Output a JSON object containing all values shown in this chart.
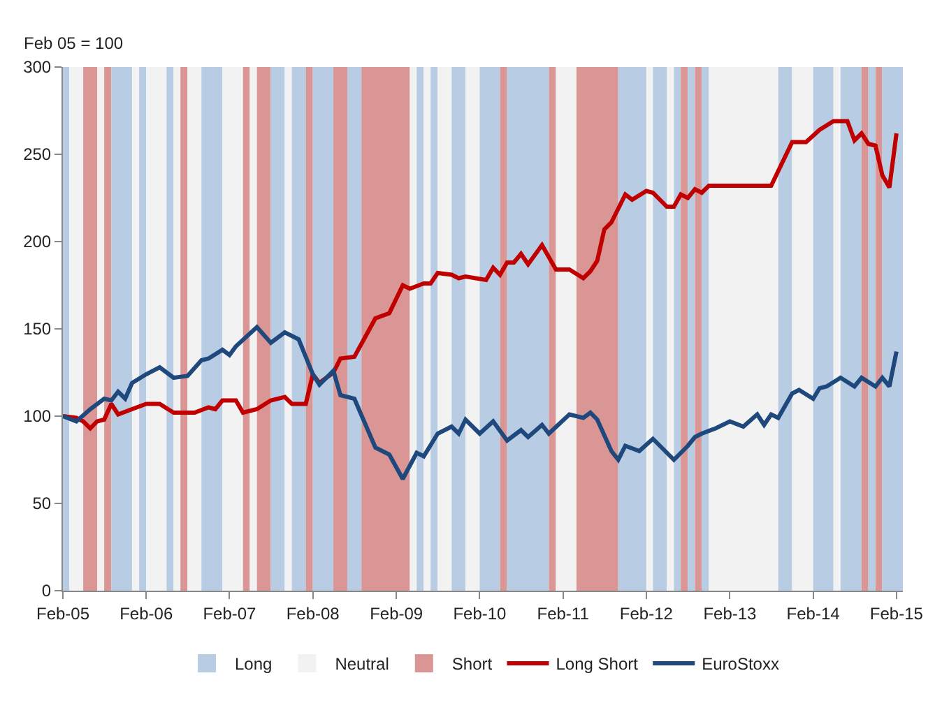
{
  "chart_data": {
    "type": "line",
    "annotations": [
      "Feb 05 = 100"
    ],
    "xlim": [
      "2005-02",
      "2015-03"
    ],
    "xticks": [
      {
        "value": "2005-02",
        "label": "Feb-05"
      },
      {
        "value": "2006-02",
        "label": "Feb-06"
      },
      {
        "value": "2007-02",
        "label": "Feb-07"
      },
      {
        "value": "2008-02",
        "label": "Feb-08"
      },
      {
        "value": "2009-02",
        "label": "Feb-09"
      },
      {
        "value": "2010-02",
        "label": "Feb-10"
      },
      {
        "value": "2011-02",
        "label": "Feb-11"
      },
      {
        "value": "2012-02",
        "label": "Feb-12"
      },
      {
        "value": "2013-02",
        "label": "Feb-13"
      },
      {
        "value": "2014-02",
        "label": "Feb-14"
      },
      {
        "value": "2015-02",
        "label": "Feb-15"
      }
    ],
    "ylim": [
      0,
      300
    ],
    "yticks": [
      0,
      50,
      100,
      150,
      200,
      250,
      300
    ],
    "grid": false,
    "legend": "bottom",
    "marker": "none",
    "line_style": "solid",
    "bands": [
      {
        "axis": "x",
        "from": "2005-02",
        "to": "2005-03",
        "label": "Long",
        "color": "#b8cce4"
      },
      {
        "axis": "x",
        "from": "2005-03",
        "to": "2005-05",
        "label": "Neutral",
        "color": "#f2f2f2"
      },
      {
        "axis": "x",
        "from": "2005-05",
        "to": "2005-07",
        "label": "Short",
        "color": "#d99694"
      },
      {
        "axis": "x",
        "from": "2005-07",
        "to": "2005-08",
        "color": "#f2f2f2"
      },
      {
        "axis": "x",
        "from": "2005-08",
        "to": "2005-09",
        "color": "#d99694"
      },
      {
        "axis": "x",
        "from": "2005-09",
        "to": "2005-12",
        "color": "#b8cce4"
      },
      {
        "axis": "x",
        "from": "2005-12",
        "to": "2006-01",
        "color": "#f2f2f2"
      },
      {
        "axis": "x",
        "from": "2006-01",
        "to": "2006-02",
        "color": "#b8cce4"
      },
      {
        "axis": "x",
        "from": "2006-02",
        "to": "2006-05",
        "color": "#f2f2f2"
      },
      {
        "axis": "x",
        "from": "2006-05",
        "to": "2006-06",
        "color": "#b8cce4"
      },
      {
        "axis": "x",
        "from": "2006-06",
        "to": "2006-07",
        "color": "#f2f2f2"
      },
      {
        "axis": "x",
        "from": "2006-07",
        "to": "2006-08",
        "color": "#d99694"
      },
      {
        "axis": "x",
        "from": "2006-08",
        "to": "2006-10",
        "color": "#f2f2f2"
      },
      {
        "axis": "x",
        "from": "2006-10",
        "to": "2007-01",
        "color": "#b8cce4"
      },
      {
        "axis": "x",
        "from": "2007-01",
        "to": "2007-04",
        "color": "#f2f2f2"
      },
      {
        "axis": "x",
        "from": "2007-04",
        "to": "2007-05",
        "color": "#d99694"
      },
      {
        "axis": "x",
        "from": "2007-05",
        "to": "2007-06",
        "color": "#f2f2f2"
      },
      {
        "axis": "x",
        "from": "2007-06",
        "to": "2007-08",
        "color": "#d99694"
      },
      {
        "axis": "x",
        "from": "2007-08",
        "to": "2007-10",
        "color": "#b8cce4"
      },
      {
        "axis": "x",
        "from": "2007-10",
        "to": "2007-11",
        "color": "#f2f2f2"
      },
      {
        "axis": "x",
        "from": "2007-11",
        "to": "2008-01",
        "color": "#b8cce4"
      },
      {
        "axis": "x",
        "from": "2008-01",
        "to": "2008-02",
        "color": "#d99694"
      },
      {
        "axis": "x",
        "from": "2008-02",
        "to": "2008-05",
        "color": "#b8cce4"
      },
      {
        "axis": "x",
        "from": "2008-05",
        "to": "2008-07",
        "color": "#d99694"
      },
      {
        "axis": "x",
        "from": "2008-07",
        "to": "2008-09",
        "color": "#b8cce4"
      },
      {
        "axis": "x",
        "from": "2008-09",
        "to": "2009-04",
        "color": "#d99694"
      },
      {
        "axis": "x",
        "from": "2009-04",
        "to": "2009-05",
        "color": "#f2f2f2"
      },
      {
        "axis": "x",
        "from": "2009-05",
        "to": "2009-06",
        "color": "#b8cce4"
      },
      {
        "axis": "x",
        "from": "2009-06",
        "to": "2009-07",
        "color": "#f2f2f2"
      },
      {
        "axis": "x",
        "from": "2009-07",
        "to": "2009-08",
        "color": "#b8cce4"
      },
      {
        "axis": "x",
        "from": "2009-08",
        "to": "2009-10",
        "color": "#f2f2f2"
      },
      {
        "axis": "x",
        "from": "2009-10",
        "to": "2009-12",
        "color": "#b8cce4"
      },
      {
        "axis": "x",
        "from": "2009-12",
        "to": "2010-02",
        "color": "#f2f2f2"
      },
      {
        "axis": "x",
        "from": "2010-02",
        "to": "2010-05",
        "color": "#b8cce4"
      },
      {
        "axis": "x",
        "from": "2010-05",
        "to": "2010-06",
        "color": "#d99694"
      },
      {
        "axis": "x",
        "from": "2010-06",
        "to": "2010-12",
        "color": "#b8cce4"
      },
      {
        "axis": "x",
        "from": "2010-12",
        "to": "2011-01",
        "color": "#d99694"
      },
      {
        "axis": "x",
        "from": "2011-01",
        "to": "2011-04",
        "color": "#f2f2f2"
      },
      {
        "axis": "x",
        "from": "2011-04",
        "to": "2011-10",
        "color": "#d99694"
      },
      {
        "axis": "x",
        "from": "2011-10",
        "to": "2012-02",
        "color": "#b8cce4"
      },
      {
        "axis": "x",
        "from": "2012-02",
        "to": "2012-03",
        "color": "#f2f2f2"
      },
      {
        "axis": "x",
        "from": "2012-03",
        "to": "2012-05",
        "color": "#b8cce4"
      },
      {
        "axis": "x",
        "from": "2012-05",
        "to": "2012-06",
        "color": "#f2f2f2"
      },
      {
        "axis": "x",
        "from": "2012-06",
        "to": "2012-07",
        "color": "#b8cce4"
      },
      {
        "axis": "x",
        "from": "2012-07",
        "to": "2012-08",
        "color": "#d99694"
      },
      {
        "axis": "x",
        "from": "2012-08",
        "to": "2012-09",
        "color": "#b8cce4"
      },
      {
        "axis": "x",
        "from": "2012-09",
        "to": "2012-10",
        "color": "#d99694"
      },
      {
        "axis": "x",
        "from": "2012-10",
        "to": "2012-11",
        "color": "#b8cce4"
      },
      {
        "axis": "x",
        "from": "2012-11",
        "to": "2013-09",
        "color": "#f2f2f2"
      },
      {
        "axis": "x",
        "from": "2013-09",
        "to": "2013-11",
        "color": "#b8cce4"
      },
      {
        "axis": "x",
        "from": "2013-11",
        "to": "2014-02",
        "color": "#f2f2f2"
      },
      {
        "axis": "x",
        "from": "2014-02",
        "to": "2014-05",
        "color": "#b8cce4"
      },
      {
        "axis": "x",
        "from": "2014-05",
        "to": "2014-06",
        "color": "#f2f2f2"
      },
      {
        "axis": "x",
        "from": "2014-06",
        "to": "2014-09",
        "color": "#b8cce4"
      },
      {
        "axis": "x",
        "from": "2014-09",
        "to": "2014-10",
        "color": "#d99694"
      },
      {
        "axis": "x",
        "from": "2014-10",
        "to": "2014-11",
        "color": "#b8cce4"
      },
      {
        "axis": "x",
        "from": "2014-11",
        "to": "2014-12",
        "color": "#d99694"
      },
      {
        "axis": "x",
        "from": "2014-12",
        "to": "2015-03",
        "color": "#b8cce4"
      }
    ],
    "series": [
      {
        "name": "Long Short",
        "color": "#c00000",
        "x": [
          "2005-02",
          "2005-04",
          "2005-05",
          "2005-06",
          "2005-07",
          "2005-08",
          "2005-09",
          "2005-10",
          "2005-12",
          "2006-02",
          "2006-04",
          "2006-06",
          "2006-09",
          "2006-11",
          "2006-12",
          "2007-01",
          "2007-03",
          "2007-04",
          "2007-06",
          "2007-08",
          "2007-10",
          "2007-11",
          "2008-01",
          "2008-02",
          "2008-03",
          "2008-05",
          "2008-06",
          "2008-08",
          "2008-11",
          "2009-01",
          "2009-03",
          "2009-04",
          "2009-06",
          "2009-07",
          "2009-08",
          "2009-10",
          "2009-11",
          "2009-12",
          "2010-03",
          "2010-04",
          "2010-05",
          "2010-06",
          "2010-07",
          "2010-08",
          "2010-09",
          "2010-11",
          "2011-01",
          "2011-03",
          "2011-05",
          "2011-06",
          "2011-07",
          "2011-08",
          "2011-09",
          "2011-11",
          "2011-12",
          "2012-02",
          "2012-03",
          "2012-05",
          "2012-06",
          "2012-07",
          "2012-08",
          "2012-09",
          "2012-10",
          "2012-11",
          "2013-08",
          "2013-11",
          "2014-01",
          "2014-03",
          "2014-05",
          "2014-07",
          "2014-08",
          "2014-09",
          "2014-10",
          "2014-11",
          "2014-12",
          "2015-01",
          "2015-02"
        ],
        "values": [
          100,
          99,
          97,
          93,
          97,
          98,
          107,
          101,
          104,
          107,
          107,
          102,
          102,
          105,
          104,
          109,
          109,
          102,
          104,
          109,
          111,
          107,
          107,
          124,
          119,
          125,
          133,
          134,
          156,
          159,
          175,
          173,
          176,
          176,
          182,
          181,
          179,
          180,
          178,
          185,
          181,
          188,
          188,
          193,
          187,
          198,
          184,
          184,
          179,
          183,
          189,
          207,
          211,
          227,
          224,
          229,
          228,
          220,
          220,
          227,
          225,
          230,
          228,
          232,
          232,
          257,
          257,
          264,
          269,
          269,
          258,
          262,
          256,
          255,
          238,
          231,
          262
        ]
      },
      {
        "name": "EuroStoxx",
        "color": "#1f497d",
        "x": [
          "2005-02",
          "2005-04",
          "2005-06",
          "2005-08",
          "2005-09",
          "2005-10",
          "2005-11",
          "2005-12",
          "2006-02",
          "2006-04",
          "2006-06",
          "2006-08",
          "2006-10",
          "2006-11",
          "2007-01",
          "2007-02",
          "2007-03",
          "2007-06",
          "2007-08",
          "2007-10",
          "2007-12",
          "2008-02",
          "2008-03",
          "2008-05",
          "2008-06",
          "2008-08",
          "2008-11",
          "2009-01",
          "2009-03",
          "2009-05",
          "2009-06",
          "2009-08",
          "2009-10",
          "2009-11",
          "2009-12",
          "2010-02",
          "2010-04",
          "2010-06",
          "2010-08",
          "2010-09",
          "2010-11",
          "2010-12",
          "2011-03",
          "2011-05",
          "2011-06",
          "2011-07",
          "2011-09",
          "2011-10",
          "2011-11",
          "2012-01",
          "2012-03",
          "2012-06",
          "2012-08",
          "2012-09",
          "2012-10",
          "2012-12",
          "2013-02",
          "2013-04",
          "2013-06",
          "2013-07",
          "2013-08",
          "2013-09",
          "2013-11",
          "2013-12",
          "2014-02",
          "2014-03",
          "2014-04",
          "2014-06",
          "2014-08",
          "2014-09",
          "2014-11",
          "2014-12",
          "2015-01",
          "2015-02"
        ],
        "values": [
          100,
          97,
          104,
          110,
          109,
          114,
          110,
          119,
          124,
          128,
          122,
          123,
          132,
          133,
          138,
          135,
          140,
          151,
          142,
          148,
          144,
          124,
          118,
          126,
          112,
          110,
          82,
          78,
          64,
          79,
          77,
          90,
          94,
          90,
          98,
          90,
          97,
          86,
          92,
          88,
          95,
          90,
          101,
          99,
          102,
          98,
          80,
          75,
          83,
          80,
          87,
          75,
          83,
          88,
          90,
          93,
          97,
          94,
          101,
          95,
          101,
          99,
          113,
          115,
          110,
          116,
          117,
          122,
          117,
          122,
          117,
          122,
          117,
          137
        ]
      }
    ]
  }
}
